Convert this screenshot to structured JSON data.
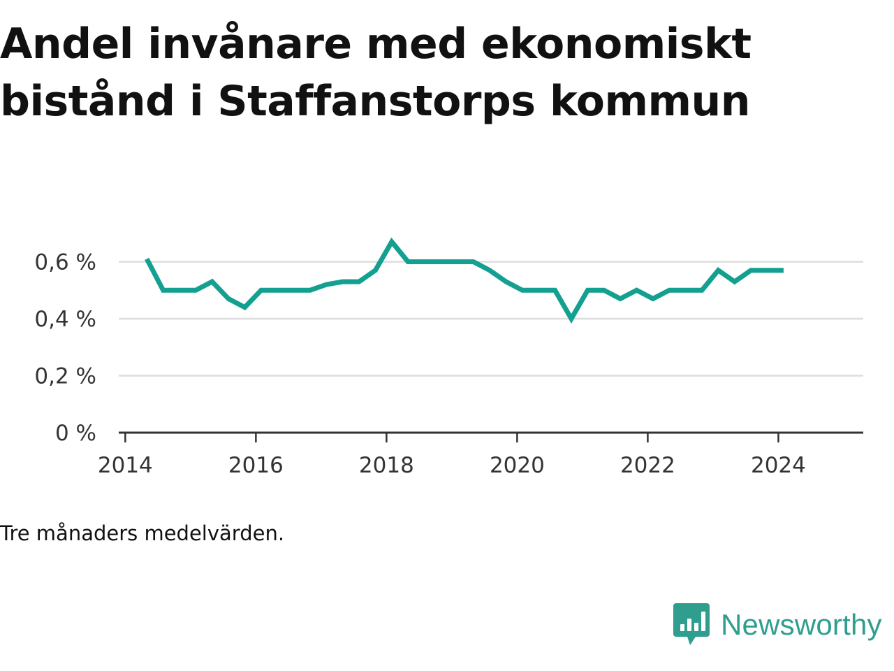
{
  "title": "Andel invånare med ekonomiskt bistånd i Staffanstorps kommun",
  "caption": "Tre månaders medelvärden.",
  "brand": {
    "name": "Newsworthy",
    "icon": "bar-chart-speech-bubble-icon",
    "color": "#2f9e8f"
  },
  "colors": {
    "line": "#14a090",
    "grid": "#dddddd",
    "axis": "#333333"
  },
  "chart_data": {
    "type": "line",
    "title": "Andel invånare med ekonomiskt bistånd i Staffanstorps kommun",
    "xlabel": "",
    "ylabel": "",
    "xlim": [
      2013.9,
      2025.3
    ],
    "ylim": [
      0,
      0.6
    ],
    "yticks": [
      0,
      0.2,
      0.4,
      0.6
    ],
    "ytick_labels": [
      "0 %",
      "0,2 %",
      "0,4 %",
      "0,6 %"
    ],
    "xticks": [
      2014,
      2016,
      2018,
      2020,
      2022,
      2024
    ],
    "xtick_labels": [
      "2014",
      "2016",
      "2018",
      "2020",
      "2022",
      "2024"
    ],
    "grid": true,
    "series": [
      {
        "x": [
          2014.33,
          2014.58,
          2014.83,
          2015.08,
          2015.33,
          2015.58,
          2015.83,
          2016.08,
          2016.33,
          2016.58,
          2016.83,
          2017.08,
          2017.33,
          2017.58,
          2017.83,
          2018.08,
          2018.33,
          2018.58,
          2018.83,
          2019.08,
          2019.33,
          2019.58,
          2019.83,
          2020.08,
          2020.33,
          2020.58,
          2020.83,
          2021.08,
          2021.33,
          2021.58,
          2021.83,
          2022.08,
          2022.33,
          2022.58,
          2022.83,
          2023.08,
          2023.33,
          2023.58,
          2023.83,
          2024.08
        ],
        "y": [
          0.61,
          0.5,
          0.5,
          0.5,
          0.53,
          0.47,
          0.44,
          0.5,
          0.5,
          0.5,
          0.5,
          0.52,
          0.53,
          0.53,
          0.57,
          0.67,
          0.6,
          0.6,
          0.6,
          0.6,
          0.6,
          0.57,
          0.53,
          0.5,
          0.5,
          0.5,
          0.4,
          0.5,
          0.5,
          0.47,
          0.5,
          0.47,
          0.5,
          0.5,
          0.5,
          0.57,
          0.53,
          0.57,
          0.57,
          0.57
        ]
      }
    ]
  }
}
